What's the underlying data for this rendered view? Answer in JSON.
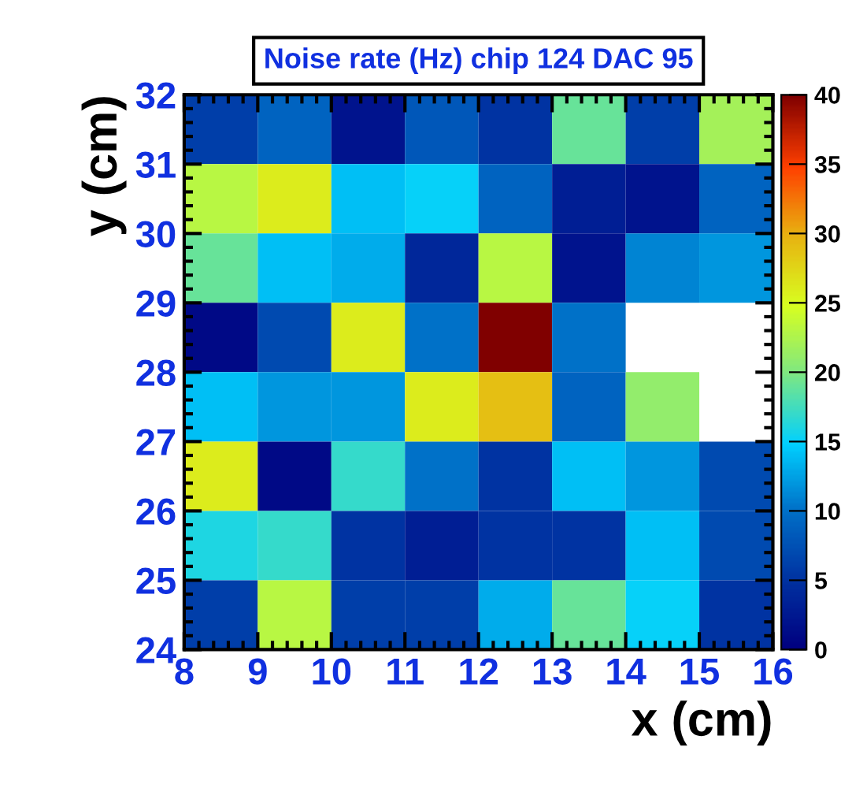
{
  "chart_data": {
    "type": "heatmap",
    "title": "Noise rate (Hz) chip 124 DAC 95",
    "xlabel": "x (cm)",
    "ylabel": "y (cm)",
    "xlim": [
      8,
      16
    ],
    "xticks": [
      8,
      9,
      10,
      11,
      12,
      13,
      14,
      15,
      16
    ],
    "ylim": [
      24,
      32
    ],
    "yticks": [
      24,
      25,
      26,
      27,
      28,
      29,
      30,
      31,
      32
    ],
    "cells": [
      [
        6,
        9,
        2,
        8,
        5,
        19,
        6,
        22
      ],
      [
        23,
        26,
        14,
        15,
        9,
        3,
        2,
        9
      ],
      [
        19,
        14,
        13,
        4,
        23,
        2,
        11,
        12
      ],
      [
        1,
        7,
        26,
        10,
        40,
        10,
        null,
        null
      ],
      [
        14,
        12,
        12,
        26,
        29,
        9,
        21,
        null
      ],
      [
        26,
        1,
        17,
        10,
        5,
        14,
        12,
        7
      ],
      [
        16,
        17,
        5,
        3,
        5,
        5,
        14,
        7
      ],
      [
        6,
        23,
        6,
        6,
        13,
        19,
        15,
        5
      ]
    ],
    "clim": [
      0,
      40
    ],
    "cticks": [
      0,
      5,
      10,
      15,
      20,
      25,
      30,
      35,
      40
    ]
  }
}
